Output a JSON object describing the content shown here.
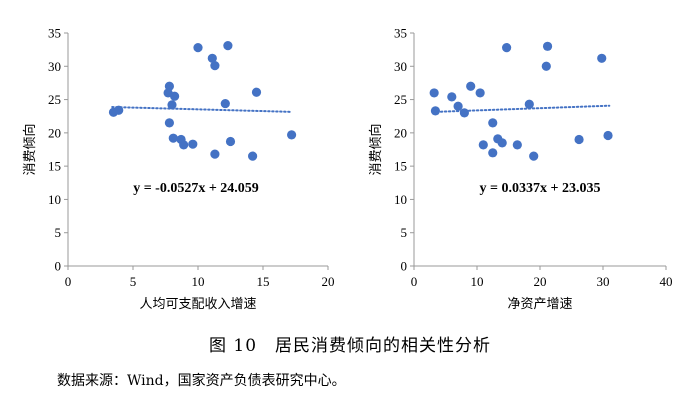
{
  "figure": {
    "caption": "图 10　居民消费倾向的相关性分析",
    "source": "数据来源：Wind，国家资产负债表研究中心。"
  },
  "colors": {
    "point": "#4472C4",
    "trend": "#4472C4",
    "axis": "#000000"
  },
  "chart_data": [
    {
      "type": "scatter",
      "xlabel": "人均可支配收入增速",
      "ylabel": "消费倾向",
      "xlim": [
        0,
        20
      ],
      "ylim": [
        0,
        35
      ],
      "xticks": [
        "0",
        "5",
        "10",
        "15",
        "20"
      ],
      "yticks": [
        "0",
        "5",
        "10",
        "15",
        "20",
        "25",
        "30",
        "35"
      ],
      "grid": false,
      "trendline": {
        "style": "dotted",
        "slope": -0.0527,
        "intercept": 24.059,
        "x_range": [
          3.4,
          17.2
        ]
      },
      "equation": "y = -0.0527x + 24.059",
      "points": [
        [
          3.5,
          23.1
        ],
        [
          3.9,
          23.4
        ],
        [
          7.8,
          27.0
        ],
        [
          7.7,
          26.0
        ],
        [
          8.2,
          25.5
        ],
        [
          8.0,
          24.2
        ],
        [
          7.8,
          21.5
        ],
        [
          8.1,
          19.2
        ],
        [
          8.7,
          19.0
        ],
        [
          8.9,
          18.2
        ],
        [
          9.6,
          18.3
        ],
        [
          10.0,
          32.8
        ],
        [
          11.1,
          31.2
        ],
        [
          11.3,
          30.1
        ],
        [
          12.3,
          33.1
        ],
        [
          12.1,
          24.4
        ],
        [
          12.5,
          18.7
        ],
        [
          11.3,
          16.8
        ],
        [
          14.5,
          26.1
        ],
        [
          14.2,
          16.5
        ],
        [
          17.2,
          19.7
        ]
      ]
    },
    {
      "type": "scatter",
      "xlabel": "净资产增速",
      "ylabel": "消费倾向",
      "xlim": [
        0,
        40
      ],
      "ylim": [
        0,
        35
      ],
      "xticks": [
        "0",
        "10",
        "20",
        "30",
        "40"
      ],
      "yticks": [
        "0",
        "5",
        "10",
        "15",
        "20",
        "25",
        "30",
        "35"
      ],
      "grid": false,
      "trendline": {
        "style": "dotted",
        "slope": 0.0337,
        "intercept": 23.035,
        "x_range": [
          3.0,
          31.0
        ]
      },
      "equation": "y = 0.0337x + 23.035",
      "points": [
        [
          3.2,
          26.0
        ],
        [
          3.4,
          23.3
        ],
        [
          6.0,
          25.4
        ],
        [
          7.0,
          24.0
        ],
        [
          8.0,
          23.0
        ],
        [
          9.0,
          27.0
        ],
        [
          10.5,
          26.0
        ],
        [
          11.0,
          18.2
        ],
        [
          12.5,
          21.5
        ],
        [
          12.5,
          17.0
        ],
        [
          13.3,
          19.1
        ],
        [
          14.0,
          18.5
        ],
        [
          14.7,
          32.8
        ],
        [
          16.4,
          18.2
        ],
        [
          18.3,
          24.3
        ],
        [
          19.0,
          16.5
        ],
        [
          21.2,
          33.0
        ],
        [
          21.0,
          30.0
        ],
        [
          26.2,
          19.0
        ],
        [
          29.8,
          31.2
        ],
        [
          30.8,
          19.6
        ]
      ]
    }
  ]
}
